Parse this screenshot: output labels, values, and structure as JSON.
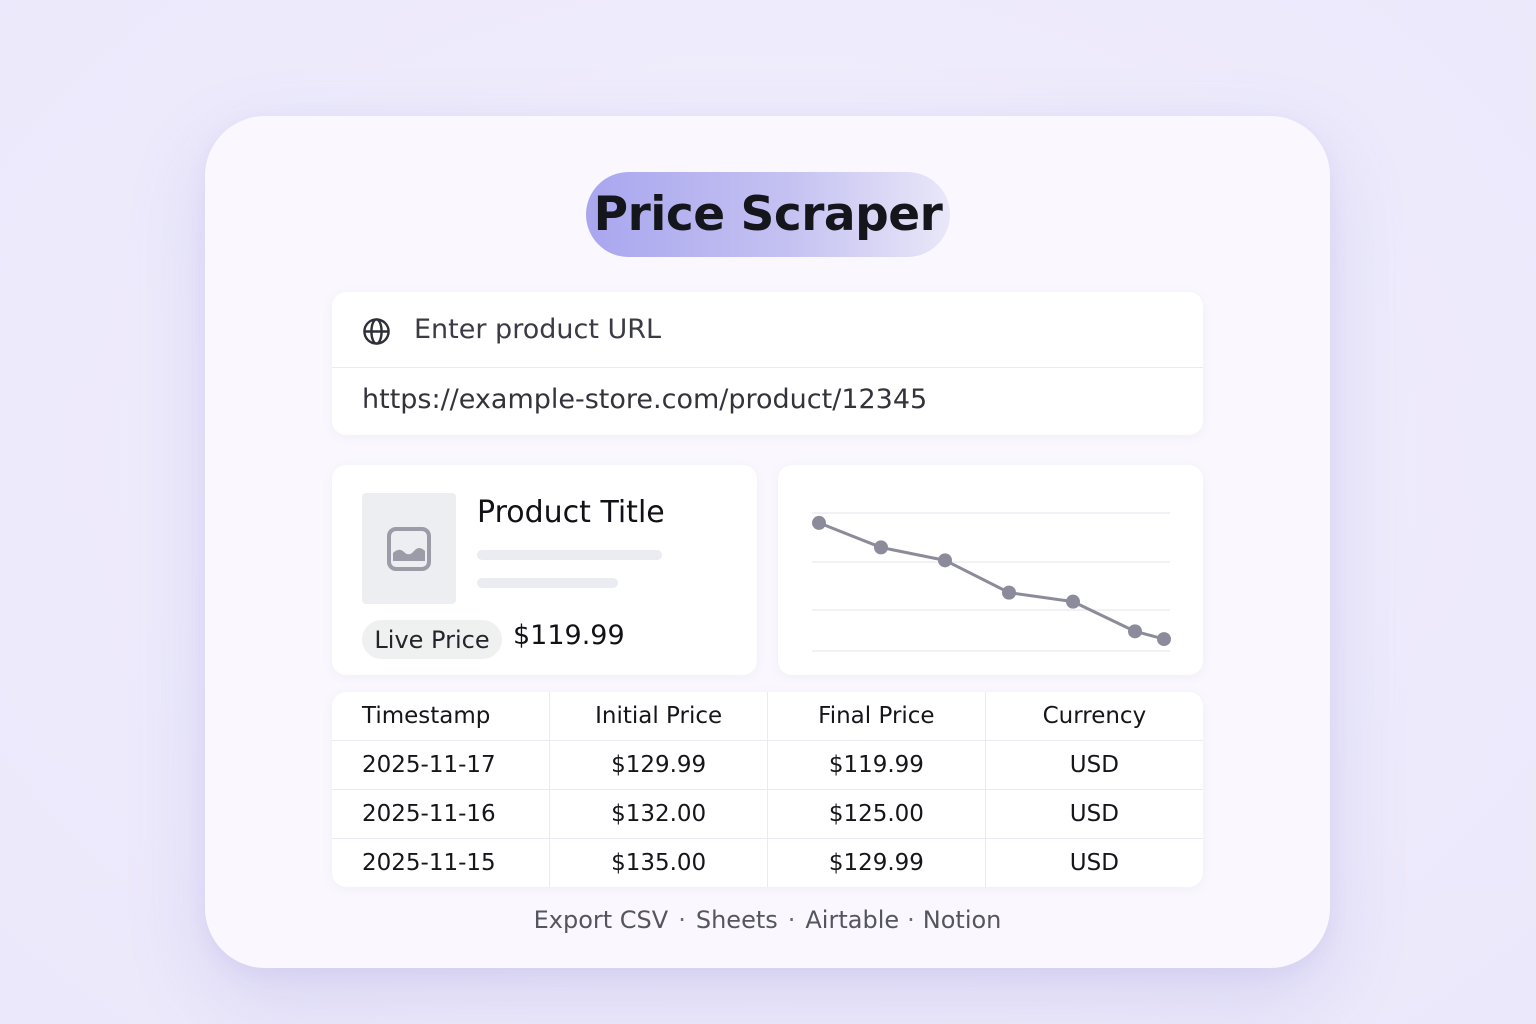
{
  "app": {
    "title": "Price Scraper"
  },
  "url_input": {
    "icon": "globe-icon",
    "label": "Enter product URL",
    "value": "https://example-store.com/product/12345"
  },
  "product": {
    "image_icon": "image-placeholder-icon",
    "title": "Product Title",
    "badge": "Live Price",
    "price": "$119.99"
  },
  "chart_data": {
    "type": "line",
    "title": "",
    "xlabel": "",
    "ylabel": "",
    "grid": true,
    "series": [
      {
        "values": [
          10,
          8.1,
          7.1,
          4.6,
          3.9,
          1.6,
          1.0
        ]
      }
    ],
    "ylim": [
      0,
      11
    ],
    "color": "#8b8b9c"
  },
  "table": {
    "headers": [
      "Timestamp",
      "Initial Price",
      "Final Price",
      "Currency"
    ],
    "rows": [
      [
        "2025-11-17",
        "$129.99",
        "$119.99",
        "USD"
      ],
      [
        "2025-11-16",
        "$132.00",
        "$125.00",
        "USD"
      ],
      [
        "2025-11-15",
        "$135.00",
        "$129.99",
        "USD"
      ]
    ]
  },
  "export": {
    "csv": "Export CSV",
    "sheets": "Sheets",
    "airtable": "Airtable",
    "notion": "Notion",
    "separator": "·"
  },
  "colors": {
    "accent": "#a9a6ef",
    "background": "#eeebfc",
    "line": "#8b8b9c"
  }
}
